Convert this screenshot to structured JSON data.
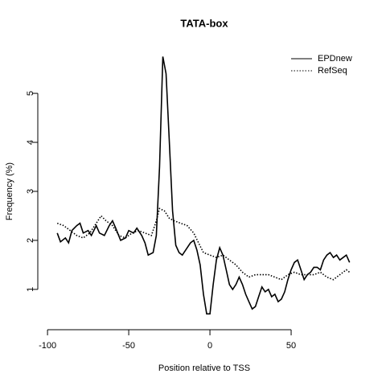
{
  "chart_data": {
    "type": "line",
    "title": "TATA-box",
    "x_label": "Position relative to TSS",
    "y_label": "Frequency (%)",
    "xlim": [
      -104.5,
      88.6
    ],
    "ylim": [
      0.21,
      5.92
    ],
    "xticks": [
      -100,
      -50,
      0,
      50
    ],
    "yticks": [
      1,
      2,
      3,
      4,
      5
    ],
    "legend": "top-right",
    "grid": false,
    "series": [
      {
        "name": "EPDnew",
        "color": "#000000",
        "linestyle": "solid",
        "x": [
          -94,
          -92,
          -89,
          -87,
          -85,
          -82,
          -80,
          -78,
          -75,
          -73,
          -70,
          -68,
          -65,
          -62,
          -60,
          -58,
          -55,
          -52,
          -50,
          -47,
          -45,
          -42,
          -40,
          -38,
          -35,
          -33,
          -31,
          -29,
          -27,
          -25,
          -23,
          -21,
          -19,
          -17,
          -15,
          -12,
          -10,
          -8,
          -6,
          -4,
          -2,
          0,
          2,
          4,
          6,
          8,
          10,
          12,
          14,
          16,
          18,
          20,
          22,
          24,
          26,
          28,
          30,
          32,
          34,
          36,
          38,
          40,
          42,
          44,
          46,
          48,
          50,
          52,
          54,
          56,
          58,
          60,
          62,
          64,
          66,
          68,
          70,
          72,
          74,
          76,
          78,
          80,
          82,
          84,
          86
        ],
        "values": [
          2.15,
          1.97,
          2.05,
          1.95,
          2.2,
          2.3,
          2.35,
          2.15,
          2.2,
          2.1,
          2.3,
          2.15,
          2.1,
          2.3,
          2.4,
          2.25,
          2.0,
          2.05,
          2.2,
          2.15,
          2.25,
          2.1,
          1.95,
          1.7,
          1.75,
          2.1,
          3.5,
          5.75,
          5.4,
          4.0,
          2.6,
          1.9,
          1.75,
          1.7,
          1.8,
          1.95,
          2.0,
          1.8,
          1.5,
          0.9,
          0.5,
          0.5,
          1.1,
          1.6,
          1.85,
          1.7,
          1.4,
          1.1,
          1.0,
          1.1,
          1.25,
          1.1,
          0.9,
          0.75,
          0.6,
          0.65,
          0.85,
          1.05,
          0.95,
          1.0,
          0.85,
          0.9,
          0.75,
          0.8,
          0.95,
          1.2,
          1.4,
          1.55,
          1.6,
          1.4,
          1.2,
          1.3,
          1.35,
          1.45,
          1.45,
          1.4,
          1.6,
          1.7,
          1.75,
          1.65,
          1.7,
          1.6,
          1.65,
          1.7,
          1.55
        ]
      },
      {
        "name": "RefSeq",
        "color": "#000000",
        "linestyle": "dotted",
        "x": [
          -94,
          -90,
          -86,
          -82,
          -78,
          -74,
          -70,
          -67,
          -64,
          -60,
          -56,
          -52,
          -48,
          -44,
          -40,
          -36,
          -33,
          -31,
          -28,
          -25,
          -22,
          -18,
          -14,
          -10,
          -7,
          -4,
          0,
          4,
          8,
          12,
          16,
          20,
          24,
          28,
          32,
          36,
          40,
          44,
          48,
          52,
          56,
          60,
          64,
          68,
          72,
          76,
          80,
          84,
          86
        ],
        "values": [
          2.35,
          2.3,
          2.2,
          2.1,
          2.05,
          2.15,
          2.35,
          2.5,
          2.4,
          2.3,
          2.1,
          2.05,
          2.15,
          2.2,
          2.15,
          2.1,
          2.4,
          2.65,
          2.6,
          2.45,
          2.4,
          2.35,
          2.3,
          2.15,
          1.95,
          1.75,
          1.7,
          1.65,
          1.7,
          1.6,
          1.5,
          1.35,
          1.25,
          1.3,
          1.3,
          1.3,
          1.25,
          1.2,
          1.3,
          1.35,
          1.3,
          1.3,
          1.3,
          1.35,
          1.25,
          1.2,
          1.3,
          1.4,
          1.35
        ]
      }
    ]
  }
}
